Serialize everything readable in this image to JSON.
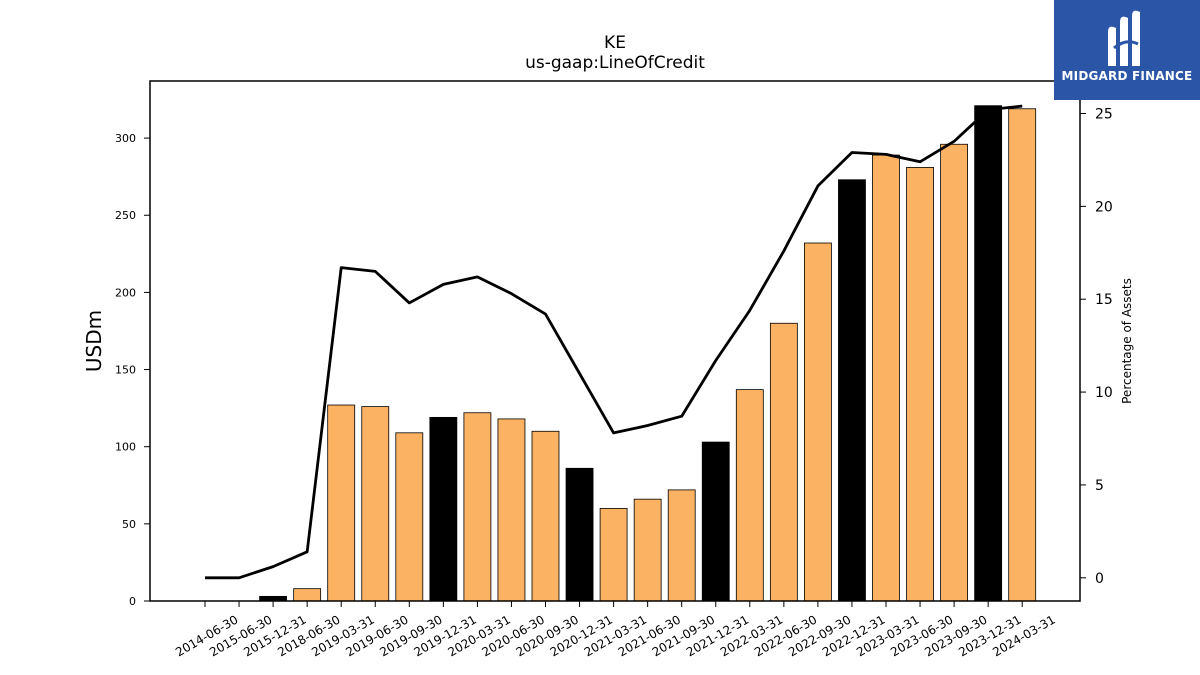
{
  "chart_data": {
    "type": "bar",
    "title": "KE",
    "subtitle": "us-gaap:LineOfCredit",
    "ylabel": "USDm",
    "y2label": "Percentage of Assets",
    "ylim": [
      0,
      337
    ],
    "y2lim": [
      -1.25,
      26.75
    ],
    "yticks": [
      0,
      50,
      100,
      150,
      200,
      250,
      300
    ],
    "y2ticks": [
      0,
      5,
      10,
      15,
      20,
      25
    ],
    "categories": [
      "2014-06-30",
      "2015-06-30",
      "2015-12-31",
      "2018-06-30",
      "2019-03-31",
      "2019-06-30",
      "2019-09-30",
      "2019-12-31",
      "2020-03-31",
      "2020-06-30",
      "2020-09-30",
      "2020-12-31",
      "2021-03-31",
      "2021-06-30",
      "2021-09-30",
      "2021-12-31",
      "2022-03-31",
      "2022-06-30",
      "2022-09-30",
      "2022-12-31",
      "2023-03-31",
      "2023-06-30",
      "2023-09-30",
      "2023-12-31",
      "2024-03-31"
    ],
    "series": [
      {
        "type": "bar",
        "values": [
          0,
          0,
          3,
          8,
          127,
          126,
          109,
          119,
          122,
          118,
          110,
          86,
          60,
          66,
          72,
          103,
          137,
          180,
          232,
          273,
          289,
          281,
          296,
          321,
          319
        ],
        "colors": [
          "#fbb262",
          "#fbb262",
          "#000000",
          "#fbb262",
          "#fbb262",
          "#fbb262",
          "#fbb262",
          "#000000",
          "#fbb262",
          "#fbb262",
          "#fbb262",
          "#000000",
          "#fbb262",
          "#fbb262",
          "#fbb262",
          "#000000",
          "#fbb262",
          "#fbb262",
          "#fbb262",
          "#000000",
          "#fbb262",
          "#fbb262",
          "#fbb262",
          "#000000",
          "#fbb262"
        ]
      },
      {
        "type": "line",
        "axis": "right",
        "color": "#000000",
        "values": [
          0.0,
          0.0,
          0.6,
          1.4,
          16.7,
          16.5,
          14.8,
          15.8,
          16.2,
          15.3,
          14.2,
          11.0,
          7.8,
          8.2,
          8.7,
          11.7,
          14.4,
          17.6,
          21.1,
          22.9,
          22.8,
          22.4,
          23.5,
          25.2,
          25.4
        ]
      }
    ],
    "grid": false
  },
  "logo": {
    "text": "MIDGARD FINANCE"
  }
}
